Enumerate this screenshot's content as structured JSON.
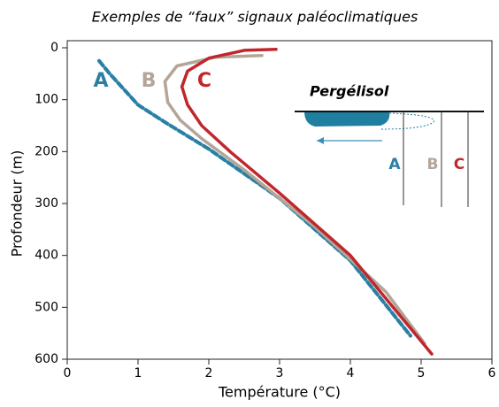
{
  "chart_data": {
    "type": "line",
    "title": "Exemples de “faux” signaux paléoclimatiques",
    "xlabel": "Température (°C)",
    "ylabel": "Profondeur (m)",
    "xlim": [
      0,
      6
    ],
    "xticks": [
      0,
      1,
      2,
      3,
      4,
      5,
      6
    ],
    "ylim": [
      0,
      600
    ],
    "yticks": [
      0,
      100,
      200,
      300,
      400,
      500,
      600
    ],
    "y_inverted": true,
    "series": [
      {
        "name": "A",
        "color": "#2a7fa3",
        "dashed": true,
        "x": [
          0.45,
          0.6,
          0.8,
          1.0,
          1.4,
          2.0,
          3.0,
          4.0,
          4.85
        ],
        "values": [
          25,
          50,
          80,
          110,
          145,
          195,
          290,
          410,
          555
        ]
      },
      {
        "name": "B",
        "color": "#b3a699",
        "dashed": false,
        "x": [
          2.75,
          2.1,
          1.55,
          1.38,
          1.42,
          1.6,
          1.9,
          2.5,
          3.5,
          4.5,
          5.05
        ],
        "values": [
          15,
          18,
          35,
          65,
          105,
          140,
          175,
          235,
          345,
          470,
          570
        ]
      },
      {
        "name": "C",
        "color": "#c0272d",
        "dashed": false,
        "x": [
          2.95,
          2.5,
          2.0,
          1.7,
          1.62,
          1.7,
          1.9,
          2.3,
          3.0,
          4.0,
          5.15
        ],
        "values": [
          3,
          5,
          20,
          45,
          75,
          110,
          150,
          200,
          280,
          400,
          590
        ]
      }
    ],
    "inset": {
      "title": "Pergélisol"
    }
  }
}
